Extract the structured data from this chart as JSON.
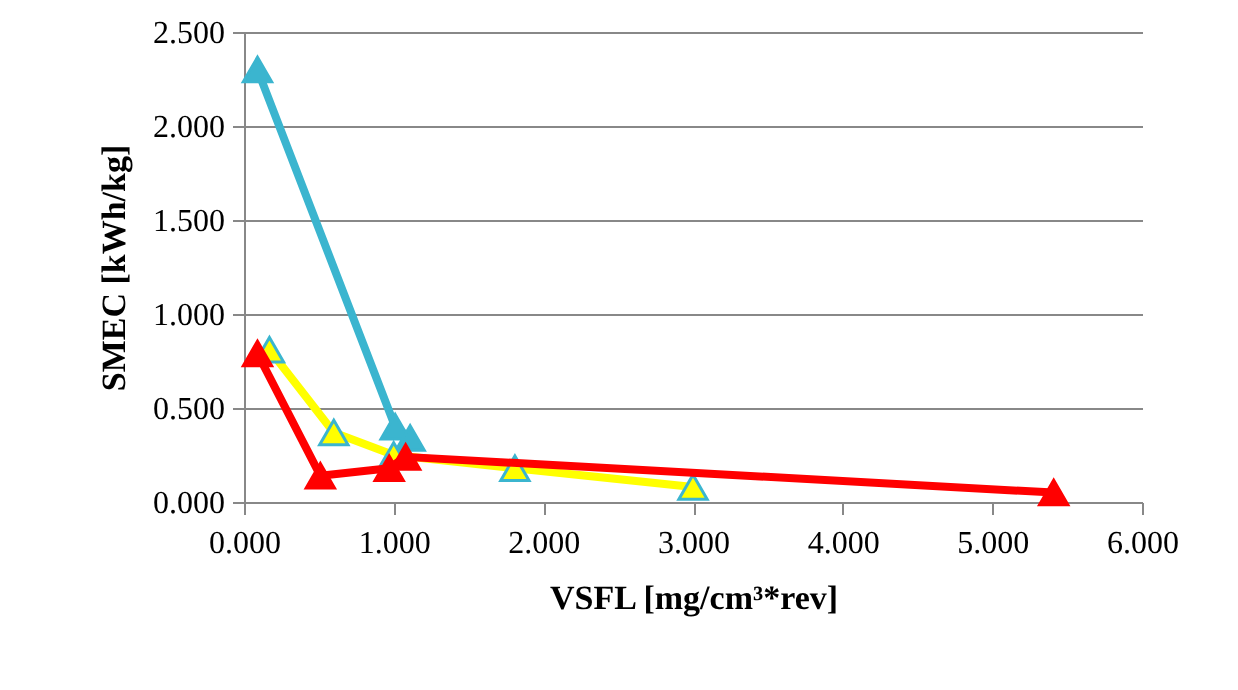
{
  "chart_data": {
    "type": "line",
    "xlabel": "VSFL [mg/cm³*rev]",
    "ylabel": "SMEC [kWh/kg]",
    "xlim": [
      0,
      6
    ],
    "xticks": [
      {
        "value": 0,
        "label": "0.000"
      },
      {
        "value": 1,
        "label": "1.000"
      },
      {
        "value": 2,
        "label": "2.000"
      },
      {
        "value": 3,
        "label": "3.000"
      },
      {
        "value": 4,
        "label": "4.000"
      },
      {
        "value": 5,
        "label": "5.000"
      },
      {
        "value": 6,
        "label": "6.000"
      }
    ],
    "ylim": [
      0,
      2.5
    ],
    "yticks": [
      {
        "value": 0,
        "label": "0.000"
      },
      {
        "value": 0.5,
        "label": "0.500"
      },
      {
        "value": 1,
        "label": "1.000"
      },
      {
        "value": 1.5,
        "label": "1.500"
      },
      {
        "value": 2,
        "label": "2.000"
      },
      {
        "value": 2.5,
        "label": "2.500"
      }
    ],
    "grid": "y",
    "marker": "triangle",
    "series": [
      {
        "color": "#3bb5cf",
        "x": [
          0.09,
          1.01,
          1.11
        ],
        "values": [
          2.3,
          0.4,
          0.34
        ]
      },
      {
        "color": "#ffff00",
        "x": [
          0.17,
          0.6,
          1.0,
          1.81,
          3.0
        ],
        "values": [
          0.81,
          0.37,
          0.25,
          0.18,
          0.08
        ]
      },
      {
        "color": "#ff0000",
        "x": [
          0.09,
          0.51,
          0.97,
          1.08,
          5.41
        ],
        "values": [
          0.79,
          0.14,
          0.18,
          0.24,
          0.05
        ]
      }
    ]
  }
}
